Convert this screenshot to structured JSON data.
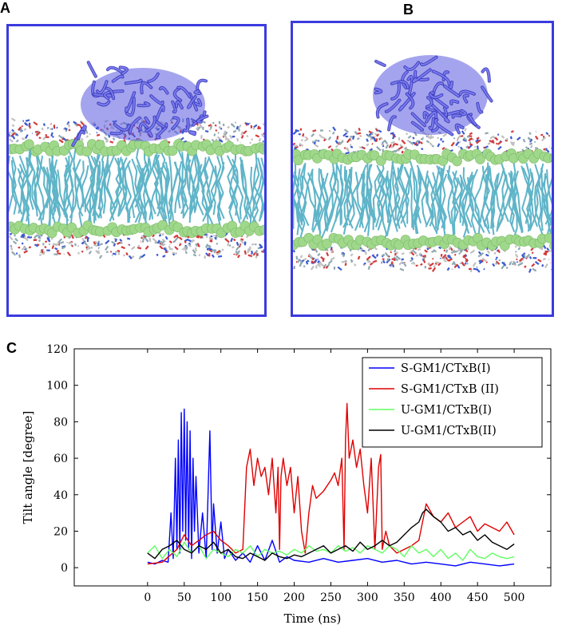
{
  "panels": {
    "a_label": "A",
    "b_label": "B",
    "c_label": "C"
  },
  "colors": {
    "box_border": "#3a3adf",
    "protein": "#5a5ae0",
    "headgroup": "#9fd88a",
    "lipid_tail": "#5fb4c8"
  },
  "chart_data": {
    "type": "line",
    "title": "",
    "xlabel": "Time (ns)",
    "ylabel": "Tilt angle [degree]",
    "xlim": [
      -100,
      550
    ],
    "ylim": [
      -10,
      120
    ],
    "xticks": [
      0,
      50,
      100,
      150,
      200,
      250,
      300,
      350,
      400,
      450,
      500
    ],
    "yticks": [
      0,
      20,
      40,
      60,
      80,
      100,
      120
    ],
    "grid": false,
    "legend_position": "top-right",
    "series": [
      {
        "name": "S-GM1/CTxB(I)",
        "color": "#0000ff",
        "points": [
          [
            0,
            3
          ],
          [
            10,
            2
          ],
          [
            20,
            4
          ],
          [
            28,
            3
          ],
          [
            32,
            30
          ],
          [
            35,
            5
          ],
          [
            38,
            60
          ],
          [
            40,
            10
          ],
          [
            42,
            70
          ],
          [
            44,
            8
          ],
          [
            46,
            85
          ],
          [
            48,
            20
          ],
          [
            50,
            87
          ],
          [
            52,
            15
          ],
          [
            54,
            80
          ],
          [
            56,
            10
          ],
          [
            58,
            75
          ],
          [
            60,
            5
          ],
          [
            62,
            60
          ],
          [
            64,
            20
          ],
          [
            66,
            50
          ],
          [
            70,
            8
          ],
          [
            75,
            30
          ],
          [
            80,
            5
          ],
          [
            85,
            75
          ],
          [
            88,
            10
          ],
          [
            90,
            35
          ],
          [
            95,
            8
          ],
          [
            100,
            25
          ],
          [
            105,
            5
          ],
          [
            110,
            10
          ],
          [
            120,
            4
          ],
          [
            130,
            8
          ],
          [
            140,
            3
          ],
          [
            150,
            12
          ],
          [
            160,
            4
          ],
          [
            170,
            15
          ],
          [
            180,
            3
          ],
          [
            190,
            6
          ],
          [
            200,
            4
          ],
          [
            220,
            3
          ],
          [
            240,
            5
          ],
          [
            260,
            3
          ],
          [
            280,
            4
          ],
          [
            300,
            5
          ],
          [
            320,
            3
          ],
          [
            340,
            4
          ],
          [
            360,
            2
          ],
          [
            380,
            3
          ],
          [
            400,
            2
          ],
          [
            420,
            1
          ],
          [
            440,
            3
          ],
          [
            460,
            2
          ],
          [
            480,
            1
          ],
          [
            500,
            2
          ]
        ]
      },
      {
        "name": "S-GM1/CTxB (II)",
        "color": "#e00000",
        "points": [
          [
            0,
            2
          ],
          [
            20,
            3
          ],
          [
            40,
            10
          ],
          [
            50,
            18
          ],
          [
            60,
            12
          ],
          [
            70,
            15
          ],
          [
            80,
            18
          ],
          [
            90,
            20
          ],
          [
            100,
            15
          ],
          [
            110,
            12
          ],
          [
            120,
            8
          ],
          [
            130,
            10
          ],
          [
            135,
            55
          ],
          [
            140,
            65
          ],
          [
            145,
            45
          ],
          [
            150,
            60
          ],
          [
            155,
            50
          ],
          [
            160,
            55
          ],
          [
            165,
            40
          ],
          [
            170,
            60
          ],
          [
            175,
            30
          ],
          [
            178,
            55
          ],
          [
            180,
            10
          ],
          [
            182,
            50
          ],
          [
            185,
            60
          ],
          [
            190,
            45
          ],
          [
            195,
            55
          ],
          [
            200,
            30
          ],
          [
            205,
            50
          ],
          [
            210,
            20
          ],
          [
            215,
            8
          ],
          [
            220,
            30
          ],
          [
            225,
            45
          ],
          [
            230,
            38
          ],
          [
            240,
            42
          ],
          [
            250,
            48
          ],
          [
            255,
            52
          ],
          [
            260,
            45
          ],
          [
            265,
            60
          ],
          [
            268,
            10
          ],
          [
            270,
            70
          ],
          [
            272,
            90
          ],
          [
            275,
            60
          ],
          [
            280,
            70
          ],
          [
            285,
            55
          ],
          [
            290,
            65
          ],
          [
            295,
            45
          ],
          [
            300,
            30
          ],
          [
            305,
            60
          ],
          [
            310,
            10
          ],
          [
            315,
            55
          ],
          [
            318,
            62
          ],
          [
            320,
            10
          ],
          [
            325,
            20
          ],
          [
            330,
            12
          ],
          [
            340,
            8
          ],
          [
            350,
            10
          ],
          [
            360,
            12
          ],
          [
            370,
            15
          ],
          [
            380,
            35
          ],
          [
            390,
            28
          ],
          [
            400,
            25
          ],
          [
            410,
            30
          ],
          [
            420,
            22
          ],
          [
            430,
            25
          ],
          [
            440,
            28
          ],
          [
            450,
            20
          ],
          [
            460,
            24
          ],
          [
            470,
            22
          ],
          [
            480,
            20
          ],
          [
            490,
            25
          ],
          [
            500,
            18
          ]
        ]
      },
      {
        "name": "U-GM1/CTxB(I)",
        "color": "#60ff60",
        "points": [
          [
            0,
            8
          ],
          [
            10,
            12
          ],
          [
            20,
            5
          ],
          [
            30,
            10
          ],
          [
            40,
            6
          ],
          [
            50,
            14
          ],
          [
            60,
            8
          ],
          [
            70,
            12
          ],
          [
            80,
            5
          ],
          [
            90,
            10
          ],
          [
            100,
            8
          ],
          [
            110,
            6
          ],
          [
            120,
            10
          ],
          [
            130,
            8
          ],
          [
            140,
            12
          ],
          [
            150,
            6
          ],
          [
            160,
            10
          ],
          [
            170,
            8
          ],
          [
            180,
            9
          ],
          [
            190,
            7
          ],
          [
            200,
            10
          ],
          [
            210,
            8
          ],
          [
            220,
            12
          ],
          [
            230,
            9
          ],
          [
            240,
            10
          ],
          [
            250,
            8
          ],
          [
            260,
            12
          ],
          [
            270,
            9
          ],
          [
            280,
            11
          ],
          [
            290,
            8
          ],
          [
            300,
            12
          ],
          [
            310,
            10
          ],
          [
            320,
            8
          ],
          [
            330,
            12
          ],
          [
            340,
            10
          ],
          [
            350,
            6
          ],
          [
            360,
            12
          ],
          [
            370,
            8
          ],
          [
            380,
            10
          ],
          [
            390,
            6
          ],
          [
            400,
            10
          ],
          [
            410,
            5
          ],
          [
            420,
            8
          ],
          [
            430,
            4
          ],
          [
            440,
            10
          ],
          [
            450,
            6
          ],
          [
            460,
            5
          ],
          [
            470,
            8
          ],
          [
            480,
            6
          ],
          [
            490,
            5
          ],
          [
            500,
            6
          ]
        ]
      },
      {
        "name": "U-GM1/CTxB(II)",
        "color": "#000000",
        "points": [
          [
            0,
            8
          ],
          [
            10,
            5
          ],
          [
            20,
            10
          ],
          [
            30,
            12
          ],
          [
            40,
            15
          ],
          [
            50,
            10
          ],
          [
            60,
            8
          ],
          [
            70,
            12
          ],
          [
            80,
            10
          ],
          [
            90,
            14
          ],
          [
            100,
            8
          ],
          [
            110,
            10
          ],
          [
            120,
            6
          ],
          [
            130,
            5
          ],
          [
            140,
            8
          ],
          [
            150,
            6
          ],
          [
            160,
            4
          ],
          [
            170,
            8
          ],
          [
            180,
            6
          ],
          [
            190,
            5
          ],
          [
            200,
            7
          ],
          [
            210,
            6
          ],
          [
            220,
            8
          ],
          [
            230,
            10
          ],
          [
            240,
            12
          ],
          [
            250,
            8
          ],
          [
            260,
            10
          ],
          [
            270,
            12
          ],
          [
            280,
            9
          ],
          [
            290,
            14
          ],
          [
            300,
            10
          ],
          [
            310,
            12
          ],
          [
            320,
            15
          ],
          [
            330,
            12
          ],
          [
            340,
            14
          ],
          [
            350,
            18
          ],
          [
            360,
            22
          ],
          [
            370,
            25
          ],
          [
            375,
            30
          ],
          [
            380,
            32
          ],
          [
            390,
            28
          ],
          [
            400,
            25
          ],
          [
            410,
            20
          ],
          [
            420,
            22
          ],
          [
            430,
            18
          ],
          [
            440,
            20
          ],
          [
            450,
            15
          ],
          [
            460,
            18
          ],
          [
            470,
            14
          ],
          [
            480,
            12
          ],
          [
            490,
            10
          ],
          [
            500,
            13
          ]
        ]
      }
    ]
  }
}
